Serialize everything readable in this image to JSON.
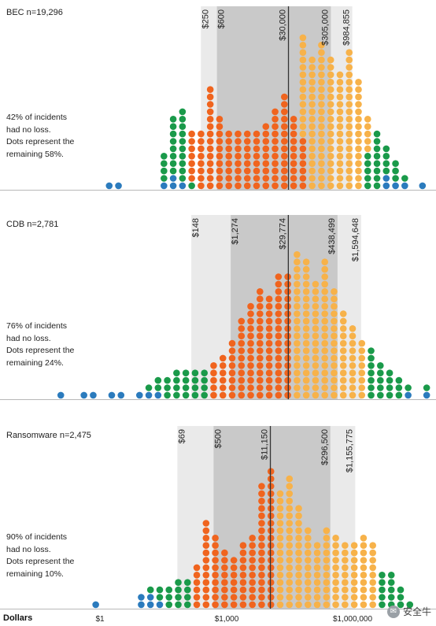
{
  "chart_data": [
    {
      "type": "dot-histogram",
      "label": "BEC n=19,296",
      "note": [
        "42% of incidents",
        "had no loss.",
        "Dots represent the",
        "remaining 58%."
      ],
      "markers": [
        {
          "value": 250,
          "label": "$250"
        },
        {
          "value": 600,
          "label": "$600"
        },
        {
          "value": 30000,
          "label": "$30,000",
          "median": true
        },
        {
          "value": 305000,
          "label": "$305,000"
        },
        {
          "value": 984855,
          "label": "$984,855"
        }
      ],
      "columns": [
        {
          "x": 0.22,
          "blue": 1,
          "green": 0,
          "orange": 0,
          "yellow": 0
        },
        {
          "x": 0.44,
          "blue": 1,
          "green": 0,
          "orange": 0,
          "yellow": 0
        },
        {
          "x": 1.52,
          "blue": 1,
          "green": 4,
          "orange": 0,
          "yellow": 0
        },
        {
          "x": 1.74,
          "blue": 2,
          "green": 8,
          "orange": 0,
          "yellow": 0
        },
        {
          "x": 1.96,
          "blue": 1,
          "green": 10,
          "orange": 0,
          "yellow": 0
        },
        {
          "x": 2.18,
          "blue": 0,
          "green": 1,
          "orange": 7,
          "yellow": 0
        },
        {
          "x": 2.4,
          "blue": 0,
          "green": 0,
          "orange": 8,
          "yellow": 0
        },
        {
          "x": 2.62,
          "blue": 0,
          "green": 0,
          "orange": 14,
          "yellow": 0
        },
        {
          "x": 2.84,
          "blue": 0,
          "green": 0,
          "orange": 10,
          "yellow": 0
        },
        {
          "x": 3.06,
          "blue": 0,
          "green": 0,
          "orange": 8,
          "yellow": 0
        },
        {
          "x": 3.28,
          "blue": 0,
          "green": 0,
          "orange": 8,
          "yellow": 0
        },
        {
          "x": 3.5,
          "blue": 0,
          "green": 0,
          "orange": 8,
          "yellow": 0
        },
        {
          "x": 3.72,
          "blue": 0,
          "green": 0,
          "orange": 8,
          "yellow": 0
        },
        {
          "x": 3.94,
          "blue": 0,
          "green": 0,
          "orange": 9,
          "yellow": 0
        },
        {
          "x": 4.16,
          "blue": 0,
          "green": 0,
          "orange": 11,
          "yellow": 0
        },
        {
          "x": 4.38,
          "blue": 0,
          "green": 0,
          "orange": 13,
          "yellow": 0
        },
        {
          "x": 4.6,
          "blue": 0,
          "green": 0,
          "orange": 10,
          "yellow": 0
        },
        {
          "x": 4.82,
          "blue": 0,
          "green": 0,
          "orange": 7,
          "yellow": 14
        },
        {
          "x": 5.04,
          "blue": 0,
          "green": 0,
          "orange": 0,
          "yellow": 18
        },
        {
          "x": 5.26,
          "blue": 0,
          "green": 0,
          "orange": 0,
          "yellow": 20
        },
        {
          "x": 5.48,
          "blue": 0,
          "green": 0,
          "orange": 0,
          "yellow": 18
        },
        {
          "x": 5.7,
          "blue": 0,
          "green": 0,
          "orange": 0,
          "yellow": 16
        },
        {
          "x": 5.92,
          "blue": 0,
          "green": 0,
          "orange": 0,
          "yellow": 19
        },
        {
          "x": 6.14,
          "blue": 0,
          "green": 0,
          "orange": 0,
          "yellow": 15
        },
        {
          "x": 6.36,
          "blue": 0,
          "green": 5,
          "orange": 0,
          "yellow": 5
        },
        {
          "x": 6.58,
          "blue": 0,
          "green": 8,
          "orange": 0,
          "yellow": 0
        },
        {
          "x": 6.8,
          "blue": 2,
          "green": 4,
          "orange": 0,
          "yellow": 0
        },
        {
          "x": 7.02,
          "blue": 1,
          "green": 3,
          "orange": 0,
          "yellow": 0
        },
        {
          "x": 7.24,
          "blue": 1,
          "green": 1,
          "orange": 0,
          "yellow": 0
        },
        {
          "x": 7.66,
          "blue": 1,
          "green": 0,
          "orange": 0,
          "yellow": 0
        }
      ]
    },
    {
      "type": "dot-histogram",
      "label": "CDB n=2,781",
      "note": [
        "76% of incidents",
        "had no loss.",
        "Dots represent the",
        "remaining 24%."
      ],
      "markers": [
        {
          "value": 148,
          "label": "$148"
        },
        {
          "value": 1274,
          "label": "$1,274"
        },
        {
          "value": 29774,
          "label": "$29,774",
          "median": true
        },
        {
          "value": 438499,
          "label": "$438,499"
        },
        {
          "value": 1594648,
          "label": "$1,594,648"
        }
      ],
      "columns": [
        {
          "x": -0.93,
          "blue": 1,
          "green": 0,
          "orange": 0,
          "yellow": 0
        },
        {
          "x": -0.38,
          "blue": 1,
          "green": 0,
          "orange": 0,
          "yellow": 0
        },
        {
          "x": -0.16,
          "blue": 1,
          "green": 0,
          "orange": 0,
          "yellow": 0
        },
        {
          "x": 0.28,
          "blue": 1,
          "green": 0,
          "orange": 0,
          "yellow": 0
        },
        {
          "x": 0.5,
          "blue": 1,
          "green": 0,
          "orange": 0,
          "yellow": 0
        },
        {
          "x": 0.94,
          "blue": 1,
          "green": 0,
          "orange": 0,
          "yellow": 0
        },
        {
          "x": 1.16,
          "blue": 1,
          "green": 1,
          "orange": 0,
          "yellow": 0
        },
        {
          "x": 1.38,
          "blue": 1,
          "green": 2,
          "orange": 0,
          "yellow": 0
        },
        {
          "x": 1.6,
          "blue": 0,
          "green": 3,
          "orange": 0,
          "yellow": 0
        },
        {
          "x": 1.82,
          "blue": 0,
          "green": 4,
          "orange": 0,
          "yellow": 0
        },
        {
          "x": 2.04,
          "blue": 0,
          "green": 4,
          "orange": 0,
          "yellow": 0
        },
        {
          "x": 2.26,
          "blue": 0,
          "green": 4,
          "orange": 0,
          "yellow": 0
        },
        {
          "x": 2.48,
          "blue": 0,
          "green": 4,
          "orange": 0,
          "yellow": 0
        },
        {
          "x": 2.7,
          "blue": 0,
          "green": 0,
          "orange": 5,
          "yellow": 0
        },
        {
          "x": 2.92,
          "blue": 0,
          "green": 0,
          "orange": 6,
          "yellow": 0
        },
        {
          "x": 3.14,
          "blue": 0,
          "green": 0,
          "orange": 8,
          "yellow": 0
        },
        {
          "x": 3.36,
          "blue": 0,
          "green": 0,
          "orange": 11,
          "yellow": 0
        },
        {
          "x": 3.58,
          "blue": 0,
          "green": 0,
          "orange": 13,
          "yellow": 0
        },
        {
          "x": 3.8,
          "blue": 0,
          "green": 0,
          "orange": 15,
          "yellow": 0
        },
        {
          "x": 4.02,
          "blue": 0,
          "green": 0,
          "orange": 14,
          "yellow": 0
        },
        {
          "x": 4.24,
          "blue": 0,
          "green": 0,
          "orange": 17,
          "yellow": 0
        },
        {
          "x": 4.46,
          "blue": 0,
          "green": 0,
          "orange": 17,
          "yellow": 0
        },
        {
          "x": 4.68,
          "blue": 0,
          "green": 0,
          "orange": 0,
          "yellow": 20
        },
        {
          "x": 4.9,
          "blue": 0,
          "green": 0,
          "orange": 0,
          "yellow": 19
        },
        {
          "x": 5.12,
          "blue": 0,
          "green": 0,
          "orange": 0,
          "yellow": 16
        },
        {
          "x": 5.34,
          "blue": 0,
          "green": 0,
          "orange": 0,
          "yellow": 19
        },
        {
          "x": 5.56,
          "blue": 0,
          "green": 0,
          "orange": 0,
          "yellow": 15
        },
        {
          "x": 5.78,
          "blue": 0,
          "green": 0,
          "orange": 0,
          "yellow": 12
        },
        {
          "x": 6.0,
          "blue": 0,
          "green": 0,
          "orange": 0,
          "yellow": 10
        },
        {
          "x": 6.22,
          "blue": 0,
          "green": 0,
          "orange": 0,
          "yellow": 8
        },
        {
          "x": 6.44,
          "blue": 0,
          "green": 7,
          "orange": 0,
          "yellow": 0
        },
        {
          "x": 6.66,
          "blue": 0,
          "green": 5,
          "orange": 0,
          "yellow": 0
        },
        {
          "x": 6.88,
          "blue": 0,
          "green": 4,
          "orange": 0,
          "yellow": 0
        },
        {
          "x": 7.1,
          "blue": 0,
          "green": 3,
          "orange": 0,
          "yellow": 0
        },
        {
          "x": 7.32,
          "blue": 1,
          "green": 1,
          "orange": 0,
          "yellow": 0
        },
        {
          "x": 7.76,
          "blue": 1,
          "green": 1,
          "orange": 0,
          "yellow": 0
        }
      ]
    },
    {
      "type": "dot-histogram",
      "label": "Ransomware n=2,475",
      "note": [
        "90% of incidents",
        "had no loss.",
        "Dots represent the",
        "remaining 10%."
      ],
      "markers": [
        {
          "value": 69,
          "label": "$69"
        },
        {
          "value": 500,
          "label": "$500"
        },
        {
          "value": 11150,
          "label": "$11,150",
          "median": true
        },
        {
          "value": 296500,
          "label": "$296,500"
        },
        {
          "value": 1155775,
          "label": "$1,155,775"
        }
      ],
      "columns": [
        {
          "x": -3.25,
          "blue": 1,
          "green": 0,
          "orange": 0,
          "yellow": 0
        },
        {
          "x": -0.1,
          "blue": 1,
          "green": 0,
          "orange": 0,
          "yellow": 0
        },
        {
          "x": 0.98,
          "blue": 2,
          "green": 0,
          "orange": 0,
          "yellow": 0
        },
        {
          "x": 1.2,
          "blue": 2,
          "green": 1,
          "orange": 0,
          "yellow": 0
        },
        {
          "x": 1.42,
          "blue": 1,
          "green": 2,
          "orange": 0,
          "yellow": 0
        },
        {
          "x": 1.64,
          "blue": 0,
          "green": 3,
          "orange": 0,
          "yellow": 0
        },
        {
          "x": 1.86,
          "blue": 0,
          "green": 4,
          "orange": 0,
          "yellow": 0
        },
        {
          "x": 2.08,
          "blue": 0,
          "green": 4,
          "orange": 0,
          "yellow": 0
        },
        {
          "x": 2.3,
          "blue": 0,
          "green": 0,
          "orange": 6,
          "yellow": 0
        },
        {
          "x": 2.52,
          "blue": 0,
          "green": 0,
          "orange": 12,
          "yellow": 0
        },
        {
          "x": 2.74,
          "blue": 0,
          "green": 0,
          "orange": 10,
          "yellow": 0
        },
        {
          "x": 2.96,
          "blue": 0,
          "green": 0,
          "orange": 8,
          "yellow": 0
        },
        {
          "x": 3.18,
          "blue": 0,
          "green": 0,
          "orange": 7,
          "yellow": 0
        },
        {
          "x": 3.4,
          "blue": 0,
          "green": 0,
          "orange": 9,
          "yellow": 0
        },
        {
          "x": 3.62,
          "blue": 0,
          "green": 0,
          "orange": 10,
          "yellow": 0
        },
        {
          "x": 3.84,
          "blue": 0,
          "green": 0,
          "orange": 17,
          "yellow": 0
        },
        {
          "x": 4.06,
          "blue": 0,
          "green": 0,
          "orange": 19,
          "yellow": 0
        },
        {
          "x": 4.28,
          "blue": 0,
          "green": 0,
          "orange": 0,
          "yellow": 16
        },
        {
          "x": 4.5,
          "blue": 0,
          "green": 0,
          "orange": 0,
          "yellow": 18
        },
        {
          "x": 4.72,
          "blue": 0,
          "green": 0,
          "orange": 0,
          "yellow": 14
        },
        {
          "x": 4.94,
          "blue": 0,
          "green": 0,
          "orange": 0,
          "yellow": 11
        },
        {
          "x": 5.16,
          "blue": 0,
          "green": 0,
          "orange": 0,
          "yellow": 9
        },
        {
          "x": 5.38,
          "blue": 0,
          "green": 0,
          "orange": 0,
          "yellow": 11
        },
        {
          "x": 5.6,
          "blue": 0,
          "green": 0,
          "orange": 0,
          "yellow": 10
        },
        {
          "x": 5.82,
          "blue": 0,
          "green": 0,
          "orange": 0,
          "yellow": 9
        },
        {
          "x": 6.04,
          "blue": 0,
          "green": 0,
          "orange": 0,
          "yellow": 9
        },
        {
          "x": 6.26,
          "blue": 0,
          "green": 0,
          "orange": 0,
          "yellow": 10
        },
        {
          "x": 6.48,
          "blue": 0,
          "green": 0,
          "orange": 0,
          "yellow": 9
        },
        {
          "x": 6.7,
          "blue": 0,
          "green": 5,
          "orange": 0,
          "yellow": 0
        },
        {
          "x": 6.92,
          "blue": 0,
          "green": 5,
          "orange": 0,
          "yellow": 0
        },
        {
          "x": 7.14,
          "blue": 0,
          "green": 3,
          "orange": 0,
          "yellow": 0
        },
        {
          "x": 7.36,
          "blue": 0,
          "green": 1,
          "orange": 0,
          "yellow": 0
        },
        {
          "x": 8.35,
          "blue": 1,
          "green": 0,
          "orange": 0,
          "yellow": 0
        }
      ]
    }
  ],
  "axis": {
    "title": "Dollars",
    "ticks": [
      {
        "value": 1,
        "label": "$1"
      },
      {
        "value": 1000,
        "label": "$1,000"
      },
      {
        "value": 1000000,
        "label": "$1,000,000"
      }
    ]
  },
  "colors": {
    "blue": "#2b7bbd",
    "green": "#1a9a4a",
    "orange": "#f0641e",
    "yellow": "#f7b24a",
    "outer_band": "#eaeaea",
    "inner_band": "#c9c9c9",
    "baseline": "#b8b8b8"
  },
  "watermark": {
    "text": "安全牛",
    "icon": "wechat-icon"
  }
}
